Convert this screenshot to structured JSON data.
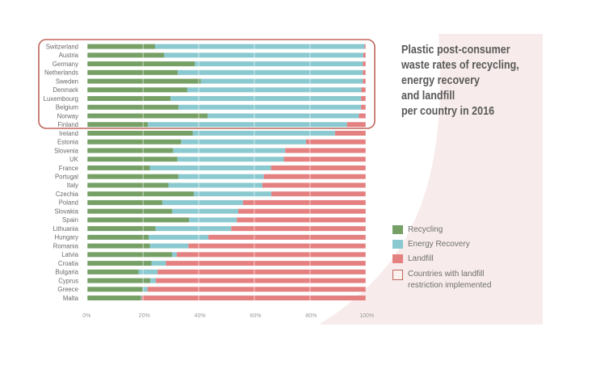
{
  "chart_data": {
    "type": "bar",
    "orientation": "horizontal",
    "stacked": true,
    "title": [
      "Plastic post-consumer",
      "waste rates of recycling,",
      "energy recovery",
      "and landfill",
      "per country in 2016"
    ],
    "xlabel": "",
    "ylabel": "",
    "xlim": [
      0,
      100
    ],
    "xticks": [
      "0%",
      "20%",
      "40%",
      "60%",
      "80%",
      "100%"
    ],
    "grid": "vertical",
    "categories": [
      "Switzerland",
      "Austria",
      "Germany",
      "Netherlands",
      "Sweden",
      "Denmark",
      "Luxembourg",
      "Belgium",
      "Norway",
      "Finland",
      "Ireland",
      "Estonia",
      "Slovenia",
      "UK",
      "France",
      "Portugal",
      "Italy",
      "Czechia",
      "Poland",
      "Slovakia",
      "Spain",
      "Lithuania",
      "Hungary",
      "Romania",
      "Latvia",
      "Croatia",
      "Bulgaria",
      "Cyprus",
      "Greece",
      "Malta"
    ],
    "series": [
      {
        "name": "Recycling",
        "color": "#76a066",
        "values": [
          24.3,
          27.6,
          38.6,
          32.5,
          40.7,
          35.9,
          29.9,
          32.7,
          43.2,
          21.7,
          37.9,
          33.7,
          30.8,
          32.3,
          22.4,
          32.7,
          29.1,
          38.3,
          26.9,
          30.5,
          36.5,
          24.5,
          22.0,
          22.5,
          30.4,
          23.0,
          18.4,
          22.6,
          19.9,
          19.2
        ]
      },
      {
        "name": "Energy Recovery",
        "color": "#8bc9d0",
        "values": [
          75.3,
          71.6,
          60.4,
          66.5,
          58.3,
          62.6,
          68.5,
          65.7,
          54.4,
          71.6,
          51.1,
          44.9,
          40.3,
          38.3,
          43.6,
          30.7,
          33.8,
          27.8,
          29.0,
          23.7,
          17.2,
          27.2,
          21.5,
          13.8,
          1.7,
          5.2,
          6.8,
          2.0,
          1.7,
          0.3
        ]
      },
      {
        "name": "Landfill",
        "color": "#e58080",
        "values": [
          0.4,
          0.8,
          1.0,
          1.0,
          1.0,
          1.5,
          1.6,
          1.6,
          2.4,
          6.7,
          11.0,
          21.4,
          28.9,
          29.4,
          34.0,
          36.6,
          37.1,
          33.9,
          44.1,
          45.8,
          46.3,
          48.3,
          56.5,
          63.7,
          67.9,
          71.8,
          74.8,
          75.4,
          78.4,
          80.5
        ]
      }
    ],
    "highlighted_countries": [
      "Switzerland",
      "Austria",
      "Germany",
      "Netherlands",
      "Sweden",
      "Denmark",
      "Luxembourg",
      "Belgium",
      "Norway",
      "Finland"
    ],
    "highlight_color": "#c0655a",
    "legend": {
      "position": "right",
      "items": [
        "Recycling",
        "Energy Recovery",
        "Landfill"
      ],
      "highlight_note_lines": [
        "Countries with landfill",
        "restriction implemented"
      ]
    },
    "background_accent_color": "#f7eceb"
  }
}
